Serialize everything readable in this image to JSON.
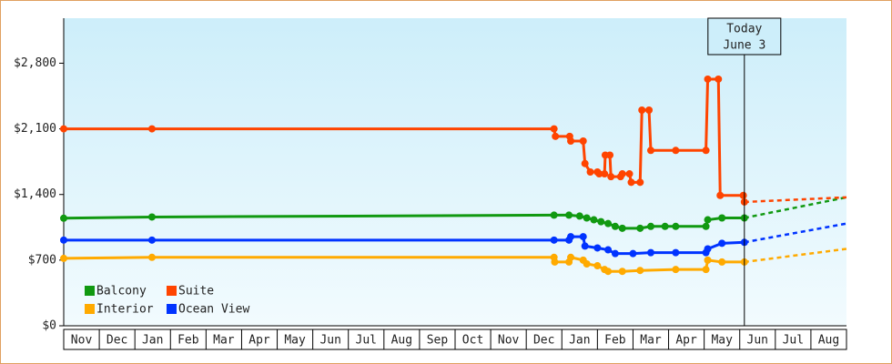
{
  "chart_data": {
    "type": "line",
    "ylim": [
      0,
      3280
    ],
    "yticks": [
      {
        "value": 0,
        "label": "$0"
      },
      {
        "value": 700,
        "label": "$700"
      },
      {
        "value": 1400,
        "label": "$1,400"
      },
      {
        "value": 2100,
        "label": "$2,100"
      },
      {
        "value": 2800,
        "label": "$2,800"
      }
    ],
    "xlim": [
      0,
      22
    ],
    "xticks": [
      {
        "value": 0.5,
        "label": "Nov"
      },
      {
        "value": 1.5,
        "label": "Dec"
      },
      {
        "value": 2.5,
        "label": "Jan"
      },
      {
        "value": 3.5,
        "label": "Feb"
      },
      {
        "value": 4.5,
        "label": "Mar"
      },
      {
        "value": 5.5,
        "label": "Apr"
      },
      {
        "value": 6.5,
        "label": "May"
      },
      {
        "value": 7.5,
        "label": "Jun"
      },
      {
        "value": 8.5,
        "label": "Jul"
      },
      {
        "value": 9.5,
        "label": "Aug"
      },
      {
        "value": 10.5,
        "label": "Sep"
      },
      {
        "value": 11.5,
        "label": "Oct"
      },
      {
        "value": 12.5,
        "label": "Nov"
      },
      {
        "value": 13.5,
        "label": "Dec"
      },
      {
        "value": 14.5,
        "label": "Jan"
      },
      {
        "value": 15.5,
        "label": "Feb"
      },
      {
        "value": 16.5,
        "label": "Mar"
      },
      {
        "value": 17.5,
        "label": "Apr"
      },
      {
        "value": 18.5,
        "label": "May"
      },
      {
        "value": 19.5,
        "label": "Jun"
      },
      {
        "value": 20.5,
        "label": "Jul"
      },
      {
        "value": 21.5,
        "label": "Aug"
      }
    ],
    "today": {
      "label": "Today",
      "date": "June 3",
      "x": 19.13
    },
    "legend": "lower left",
    "series": [
      {
        "name": "Balcony",
        "color": "#119911",
        "x": [
          0,
          2.48,
          13.78,
          14.2,
          14.5,
          14.7,
          14.9,
          15.1,
          15.3,
          15.5,
          15.7,
          16.2,
          16.5,
          16.9,
          17.2,
          18.05,
          18.1,
          18.5,
          19.13
        ],
        "values": [
          1147,
          1160,
          1180,
          1180,
          1170,
          1150,
          1130,
          1110,
          1090,
          1060,
          1040,
          1040,
          1060,
          1060,
          1060,
          1060,
          1130,
          1150,
          1150
        ],
        "forecast": {
          "x": [
            19.13,
            22
          ],
          "values": [
            1150,
            1370
          ]
        }
      },
      {
        "name": "Suite",
        "color": "#ff4400",
        "x": [
          0,
          2.48,
          13.78,
          13.82,
          14.22,
          14.25,
          14.6,
          14.65,
          14.8,
          15.0,
          15.05,
          15.2,
          15.22,
          15.35,
          15.38,
          15.65,
          15.7,
          15.9,
          15.95,
          16.2,
          16.25,
          16.45,
          16.5,
          17.2,
          18.05,
          18.1,
          18.4,
          18.45,
          19.1,
          19.13
        ],
        "values": [
          2100,
          2100,
          2100,
          2020,
          2020,
          1970,
          1970,
          1730,
          1640,
          1640,
          1620,
          1620,
          1820,
          1820,
          1590,
          1590,
          1620,
          1620,
          1530,
          1530,
          2300,
          2300,
          1870,
          1870,
          1870,
          2630,
          2630,
          1390,
          1390,
          1320
        ],
        "forecast": {
          "x": [
            19.13,
            22
          ],
          "values": [
            1320,
            1370
          ]
        }
      },
      {
        "name": "Interior",
        "color": "#ffaa00",
        "x": [
          0,
          2.48,
          13.78,
          13.8,
          14.2,
          14.25,
          14.6,
          14.7,
          15.0,
          15.2,
          15.3,
          15.7,
          16.2,
          17.2,
          18.05,
          18.1,
          18.5,
          19.13
        ],
        "values": [
          719,
          730,
          730,
          680,
          680,
          730,
          700,
          660,
          640,
          600,
          580,
          580,
          590,
          600,
          600,
          700,
          680,
          680
        ],
        "forecast": {
          "x": [
            19.13,
            22
          ],
          "values": [
            680,
            820
          ]
        }
      },
      {
        "name": "Ocean View",
        "color": "#0033ff",
        "x": [
          0,
          2.48,
          13.78,
          14.2,
          14.25,
          14.6,
          14.65,
          15.0,
          15.3,
          15.5,
          16.0,
          16.5,
          17.2,
          18.05,
          18.1,
          18.5,
          19.13
        ],
        "values": [
          914,
          914,
          914,
          914,
          950,
          950,
          850,
          830,
          810,
          770,
          770,
          780,
          780,
          780,
          820,
          880,
          890
        ],
        "forecast": {
          "x": [
            19.13,
            22
          ],
          "values": [
            890,
            1090
          ]
        }
      }
    ]
  }
}
